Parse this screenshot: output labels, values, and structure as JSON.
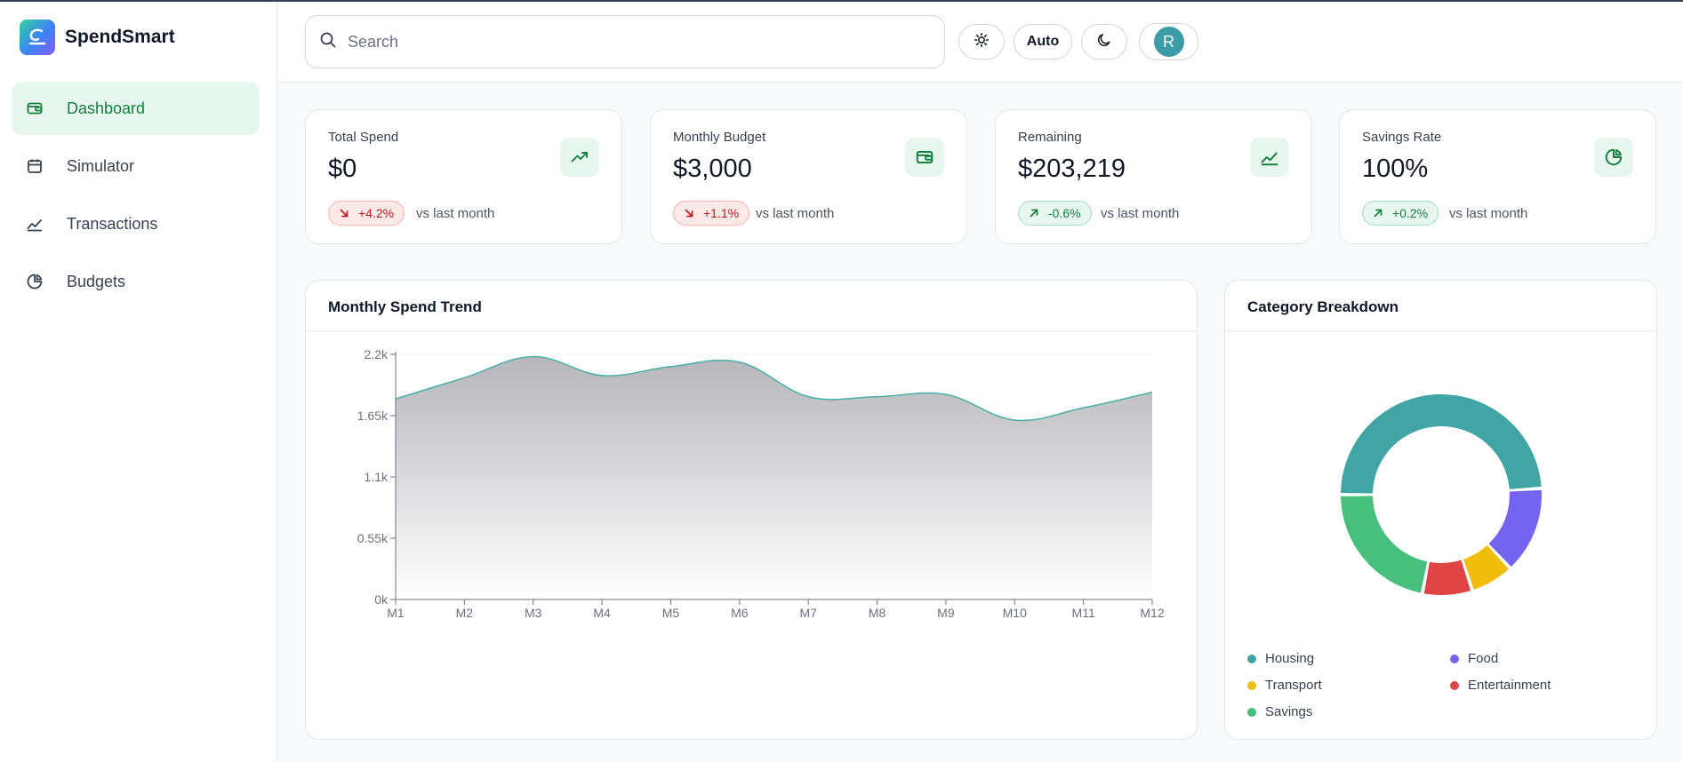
{
  "app": {
    "name": "SpendSmart"
  },
  "sidebar": {
    "items": [
      {
        "label": "Dashboard",
        "icon": "wallet-icon",
        "active": true
      },
      {
        "label": "Simulator",
        "icon": "calendar-icon",
        "active": false
      },
      {
        "label": "Transactions",
        "icon": "trend-line-icon",
        "active": false
      },
      {
        "label": "Budgets",
        "icon": "pie-chart-icon",
        "active": false
      }
    ]
  },
  "header": {
    "search_placeholder": "Search",
    "theme_auto_label": "Auto",
    "avatar_initial": "R"
  },
  "stats": [
    {
      "label": "Total Spend",
      "value": "$0",
      "change": "+4.2%",
      "direction": "down",
      "tone": "negative",
      "comparison": "vs last month",
      "icon": "trending-up-icon"
    },
    {
      "label": "Monthly Budget",
      "value": "$3,000",
      "change": "+1.1%",
      "direction": "down",
      "tone": "negative",
      "comparison": "vs last month",
      "icon": "wallet-icon"
    },
    {
      "label": "Remaining",
      "value": "$203,219",
      "change": "-0.6%",
      "direction": "up",
      "tone": "positive",
      "comparison": "vs last month",
      "icon": "trend-line-icon"
    },
    {
      "label": "Savings Rate",
      "value": "100%",
      "change": "+0.2%",
      "direction": "up",
      "tone": "positive",
      "comparison": "vs last month",
      "icon": "pie-chart-icon"
    }
  ],
  "colors": {
    "accent": "#15803d",
    "line": "#4fb0a9",
    "housing": "#42a5a5",
    "food": "#7564ef",
    "transport": "#f2be0d",
    "entertainment": "#e04444",
    "savings": "#47c07e"
  },
  "trend": {
    "title": "Monthly Spend Trend",
    "chart_data": {
      "type": "area",
      "categories": [
        "M1",
        "M2",
        "M3",
        "M4",
        "M5",
        "M6",
        "M7",
        "M8",
        "M9",
        "M10",
        "M11",
        "M12"
      ],
      "values": [
        1800,
        1990,
        2180,
        2010,
        2090,
        2130,
        1820,
        1820,
        1840,
        1610,
        1720,
        1860
      ],
      "yticks": [
        "0k",
        "0.55k",
        "1.1k",
        "1.65k",
        "2.2k"
      ],
      "ylim": [
        0,
        2200
      ],
      "grid": true
    }
  },
  "breakdown": {
    "title": "Category Breakdown",
    "chart_data": {
      "type": "pie",
      "categories": [
        "Housing",
        "Food",
        "Transport",
        "Entertainment",
        "Savings"
      ],
      "values": [
        49,
        14,
        7,
        8,
        22
      ]
    }
  }
}
